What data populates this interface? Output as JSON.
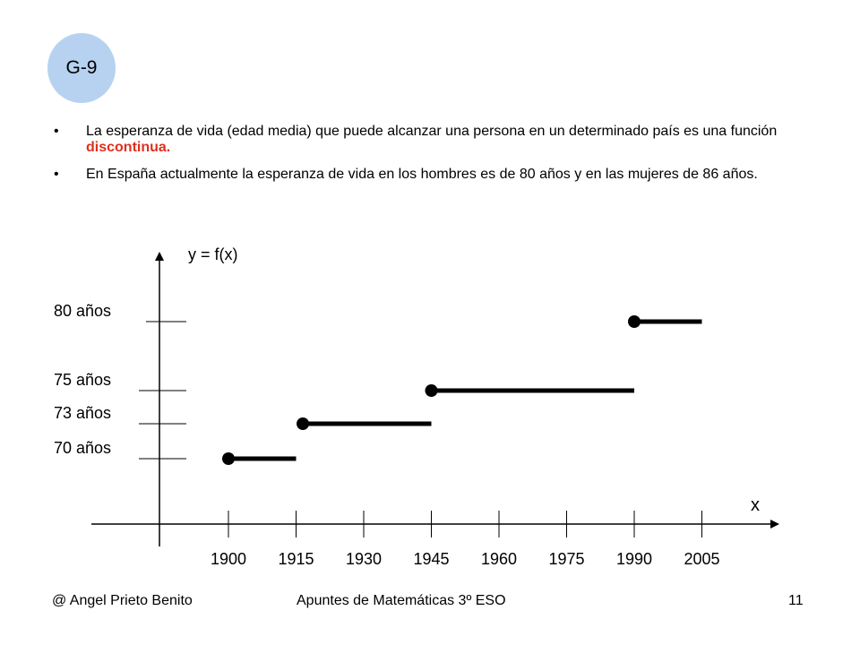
{
  "badge": "G-9",
  "bullets": [
    {
      "text": "La esperanza de vida (edad media)  que puede alcanzar una persona en un determinado país es una función ",
      "emphasis": "discontinua."
    },
    {
      "text": "En España actualmente la esperanza de vida en los hombres es de 80 años y en las mujeres de 86 años.",
      "emphasis": ""
    }
  ],
  "bullet_glyph": "•",
  "colors": {
    "badge": "#b6d2f0",
    "emphasis": "#e0301e",
    "ink": "#000000"
  },
  "chart_data": {
    "type": "line",
    "ylabel": "y = f(x)",
    "xlabel": "x",
    "x_ticks": [
      1900,
      1915,
      1930,
      1945,
      1960,
      1975,
      1990,
      2005
    ],
    "x_tick_labels": [
      "1900",
      "1915",
      "1930",
      "1945",
      "1960",
      "1975",
      "1990",
      "2005"
    ],
    "y_ticks": [
      70,
      73,
      75,
      80
    ],
    "y_tick_labels": [
      "70 años",
      "73 años",
      "75 años",
      "80 años"
    ],
    "segments": [
      {
        "x_start": 1900,
        "x_end": 1915,
        "y": 70,
        "closed_start": true
      },
      {
        "x_start": 1916.5,
        "x_end": 1945,
        "y": 73,
        "closed_start": true
      },
      {
        "x_start": 1945,
        "x_end": 1990,
        "y": 75,
        "closed_start": true
      },
      {
        "x_start": 1990,
        "x_end": 2005,
        "y": 80,
        "closed_start": true
      }
    ]
  },
  "footer": {
    "author": "@ Angel Prieto Benito",
    "course": "Apuntes de Matemáticas 3º ESO",
    "page": "11"
  }
}
